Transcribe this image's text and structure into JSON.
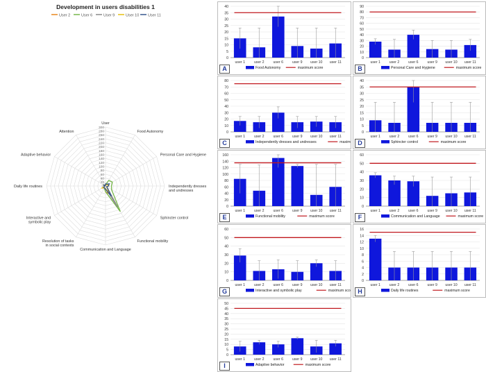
{
  "colors": {
    "bar": "#0f17dc",
    "max_line": "#c0171d",
    "grid": "#e3e3e3",
    "axis_text": "#333333"
  },
  "radar": {
    "title": "Development in users disabilities 1",
    "categories": [
      "User",
      "Food Autonomy",
      "Personal Care and Hygiene",
      "Independently dresses and undresses",
      "Sphincter control",
      "Functional mobility",
      "Communication and Language",
      "Resolution of tasks in social contexts",
      "Interactive and symbolic play",
      "Daily life routines",
      "Adaptive behavior",
      "Attention"
    ],
    "ticks": [
      0,
      20,
      40,
      60,
      80,
      100,
      120,
      140,
      160,
      180,
      200,
      220,
      240,
      260,
      280,
      300
    ],
    "max": 300,
    "series": [
      {
        "name": "User 2",
        "color": "#e8871e",
        "values": [
          2,
          8,
          13,
          15,
          7,
          48,
          30,
          10,
          11,
          4,
          12,
          2
        ]
      },
      {
        "name": "User 6",
        "color": "#77b74a",
        "values": [
          6,
          32,
          40,
          30,
          35,
          150,
          29,
          12,
          13,
          4,
          10,
          3
        ]
      },
      {
        "name": "User 9",
        "color": "#8a8a8a",
        "values": [
          9,
          9,
          14,
          15,
          7,
          125,
          12,
          10,
          10,
          4,
          16,
          2
        ]
      },
      {
        "name": "User 10",
        "color": "#e6c012",
        "values": [
          10,
          7,
          13,
          16,
          7,
          35,
          15,
          11,
          20,
          4,
          8,
          3
        ]
      },
      {
        "name": "User 11",
        "color": "#35578e",
        "values": [
          11,
          11,
          22,
          15,
          7,
          60,
          17,
          12,
          11,
          4,
          11,
          3
        ]
      }
    ]
  },
  "chart_data": [
    {
      "type": "bar",
      "panel": "A",
      "categories": [
        "user 1",
        "user 2",
        "user 6",
        "user 9",
        "user 10",
        "user 11"
      ],
      "values": [
        15,
        8,
        32,
        9,
        7,
        11
      ],
      "errors": [
        8,
        15,
        8,
        14,
        16,
        12
      ],
      "max_score": 35,
      "ylim": [
        0,
        40
      ],
      "yticks": [
        0,
        5,
        10,
        15,
        20,
        25,
        30,
        35,
        40
      ],
      "legend": [
        "Food Autonomy",
        "maximum score"
      ]
    },
    {
      "type": "bar",
      "panel": "B",
      "categories": [
        "user 1",
        "user 2",
        "user 6",
        "user 9",
        "user 10",
        "user 11"
      ],
      "values": [
        28,
        14,
        40,
        15,
        14,
        22
      ],
      "errors": [
        5,
        18,
        8,
        15,
        16,
        10
      ],
      "max_score": 80,
      "ylim": [
        0,
        90
      ],
      "yticks": [
        0,
        10,
        20,
        30,
        40,
        50,
        60,
        70,
        80,
        90
      ],
      "legend": [
        "Personal Care and Hygiene",
        "maximum score"
      ]
    },
    {
      "type": "bar",
      "panel": "C",
      "categories": [
        "user 1",
        "user 2",
        "user 6",
        "user 9",
        "user 10",
        "user 11"
      ],
      "values": [
        17,
        15,
        30,
        15,
        16,
        15
      ],
      "errors": [
        7,
        9,
        9,
        9,
        8,
        9
      ],
      "max_score": 75,
      "ylim": [
        0,
        80
      ],
      "yticks": [
        0,
        10,
        20,
        30,
        40,
        50,
        60,
        70,
        80
      ],
      "legend": [
        "Independently dresses and undresses",
        "maximum score"
      ]
    },
    {
      "type": "bar",
      "panel": "D",
      "categories": [
        "user 1",
        "user 2",
        "user 6",
        "user 9",
        "user 10",
        "user 11"
      ],
      "values": [
        9,
        7,
        35,
        7,
        7,
        7
      ],
      "errors": [
        14,
        16,
        12,
        16,
        16,
        16
      ],
      "max_score": 35,
      "ylim": [
        0,
        40
      ],
      "yticks": [
        0,
        5,
        10,
        15,
        20,
        25,
        30,
        35,
        40
      ],
      "legend": [
        "Sphincter control",
        "maximum score"
      ]
    },
    {
      "type": "bar",
      "panel": "E",
      "categories": [
        "user 1",
        "user 2",
        "user 6",
        "user 9",
        "user 10",
        "user 11"
      ],
      "values": [
        85,
        48,
        150,
        125,
        35,
        60
      ],
      "errors": [
        45,
        80,
        30,
        5,
        95,
        70
      ],
      "max_score": 135,
      "ylim": [
        0,
        160
      ],
      "yticks": [
        0,
        20,
        40,
        60,
        80,
        100,
        120,
        140,
        160
      ],
      "legend": [
        "Functional mobility",
        "maximum score"
      ]
    },
    {
      "type": "bar",
      "panel": "F",
      "categories": [
        "user 1",
        "user 2",
        "user 6",
        "user 9",
        "user 10",
        "user 11"
      ],
      "values": [
        36,
        30,
        29,
        12,
        15,
        16
      ],
      "errors": [
        3,
        5,
        6,
        22,
        19,
        18
      ],
      "max_score": 50,
      "ylim": [
        0,
        60
      ],
      "yticks": [
        0,
        10,
        20,
        30,
        40,
        50,
        60
      ],
      "legend": [
        "Communication and Language",
        "maximum score"
      ]
    },
    {
      "type": "bar",
      "panel": "G",
      "categories": [
        "user 1",
        "user 2",
        "user 6",
        "user 9",
        "user 10",
        "user 11"
      ],
      "values": [
        29,
        11,
        13,
        10,
        20,
        11
      ],
      "errors": [
        8,
        12,
        11,
        13,
        4,
        12
      ],
      "max_score": 50,
      "ylim": [
        0,
        60
      ],
      "yticks": [
        0,
        10,
        20,
        30,
        40,
        50,
        60
      ],
      "legend": [
        "Interactive and symbolic play",
        "maximum score"
      ]
    },
    {
      "type": "bar",
      "panel": "H",
      "categories": [
        "user 1",
        "user 2",
        "user 6",
        "user 9",
        "user 10",
        "user 11"
      ],
      "values": [
        13,
        4,
        4,
        4,
        4,
        4
      ],
      "errors": [
        1,
        5,
        5,
        5,
        5,
        5
      ],
      "max_score": 15,
      "ylim": [
        0,
        16
      ],
      "yticks": [
        0,
        2,
        4,
        6,
        8,
        10,
        12,
        14,
        16
      ],
      "legend": [
        "Daily life routines",
        "maximum score"
      ]
    },
    {
      "type": "bar",
      "panel": "I",
      "categories": [
        "user 1",
        "user 2",
        "user 6",
        "user 9",
        "user 10",
        "user 11"
      ],
      "values": [
        8,
        12,
        10,
        16,
        8,
        11
      ],
      "errors": [
        5,
        2,
        3,
        1,
        6,
        3
      ],
      "max_score": 45,
      "ylim": [
        0,
        50
      ],
      "yticks": [
        0,
        5,
        10,
        15,
        20,
        25,
        30,
        35,
        40,
        45,
        50
      ],
      "legend": [
        "Adaptive behavior",
        "maximum score"
      ]
    }
  ]
}
